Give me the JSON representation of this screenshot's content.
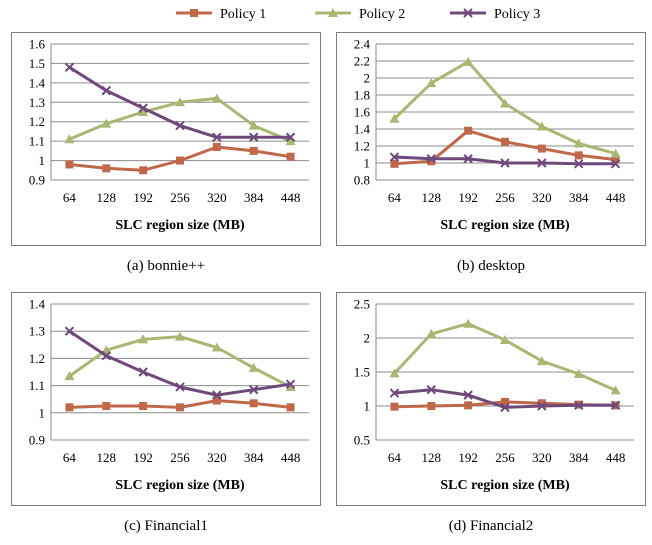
{
  "legend": [
    {
      "name": "Policy 1",
      "color": "#C0694A",
      "marker": "square"
    },
    {
      "name": "Policy 2",
      "color": "#A8B872",
      "marker": "triangle"
    },
    {
      "name": "Policy 3",
      "color": "#6E4A7A",
      "marker": "cross"
    }
  ],
  "captions": [
    "(a) bonnie++",
    "(b) desktop",
    "(c) Financial1",
    "(d) Financial2"
  ],
  "chart_data": [
    {
      "type": "line",
      "title": "",
      "xlabel": "SLC region size (MB)",
      "ylabel": "",
      "categories": [
        "64",
        "128",
        "192",
        "256",
        "320",
        "384",
        "448"
      ],
      "ylim": [
        0.9,
        1.6
      ],
      "yticks": [
        "0.9",
        "1",
        "1.1",
        "1.2",
        "1.3",
        "1.4",
        "1.5",
        "1.6"
      ],
      "grid": true,
      "series": [
        {
          "name": "Policy 1",
          "values": [
            0.98,
            0.96,
            0.95,
            1.0,
            1.07,
            1.05,
            1.02
          ]
        },
        {
          "name": "Policy 2",
          "values": [
            1.11,
            1.19,
            1.25,
            1.3,
            1.32,
            1.18,
            1.1
          ]
        },
        {
          "name": "Policy 3",
          "values": [
            1.48,
            1.36,
            1.27,
            1.18,
            1.12,
            1.12,
            1.12
          ]
        }
      ]
    },
    {
      "type": "line",
      "title": "",
      "xlabel": "SLC region size (MB)",
      "ylabel": "",
      "categories": [
        "64",
        "128",
        "192",
        "256",
        "320",
        "384",
        "448"
      ],
      "ylim": [
        0.8,
        2.4
      ],
      "yticks": [
        "0.8",
        "1",
        "1.2",
        "1.4",
        "1.6",
        "1.8",
        "2",
        "2.2",
        "2.4"
      ],
      "grid": true,
      "series": [
        {
          "name": "Policy 1",
          "values": [
            0.99,
            1.02,
            1.38,
            1.25,
            1.17,
            1.09,
            1.04
          ]
        },
        {
          "name": "Policy 2",
          "values": [
            1.52,
            1.94,
            2.19,
            1.7,
            1.43,
            1.23,
            1.11
          ]
        },
        {
          "name": "Policy 3",
          "values": [
            1.07,
            1.05,
            1.05,
            1.0,
            1.0,
            0.99,
            0.99
          ]
        }
      ]
    },
    {
      "type": "line",
      "title": "",
      "xlabel": "SLC region size (MB)",
      "ylabel": "",
      "categories": [
        "64",
        "128",
        "192",
        "256",
        "320",
        "384",
        "448"
      ],
      "ylim": [
        0.9,
        1.4
      ],
      "yticks": [
        "0.9",
        "1",
        "1.1",
        "1.2",
        "1.3",
        "1.4"
      ],
      "grid": true,
      "series": [
        {
          "name": "Policy 1",
          "values": [
            1.02,
            1.025,
            1.025,
            1.02,
            1.045,
            1.035,
            1.02
          ]
        },
        {
          "name": "Policy 2",
          "values": [
            1.135,
            1.23,
            1.27,
            1.28,
            1.24,
            1.165,
            1.095
          ]
        },
        {
          "name": "Policy 3",
          "values": [
            1.3,
            1.21,
            1.15,
            1.095,
            1.065,
            1.085,
            1.105
          ]
        }
      ]
    },
    {
      "type": "line",
      "title": "",
      "xlabel": "SLC region size (MB)",
      "ylabel": "",
      "categories": [
        "64",
        "128",
        "192",
        "256",
        "320",
        "384",
        "448"
      ],
      "ylim": [
        0.5,
        2.5
      ],
      "yticks": [
        "0.5",
        "1",
        "1.5",
        "2",
        "2.5"
      ],
      "grid": true,
      "series": [
        {
          "name": "Policy 1",
          "values": [
            0.99,
            1.0,
            1.01,
            1.06,
            1.04,
            1.02,
            1.01
          ]
        },
        {
          "name": "Policy 2",
          "values": [
            1.48,
            2.06,
            2.21,
            1.97,
            1.66,
            1.47,
            1.23
          ]
        },
        {
          "name": "Policy 3",
          "values": [
            1.19,
            1.24,
            1.16,
            0.98,
            1.0,
            1.01,
            1.01
          ]
        }
      ]
    }
  ]
}
